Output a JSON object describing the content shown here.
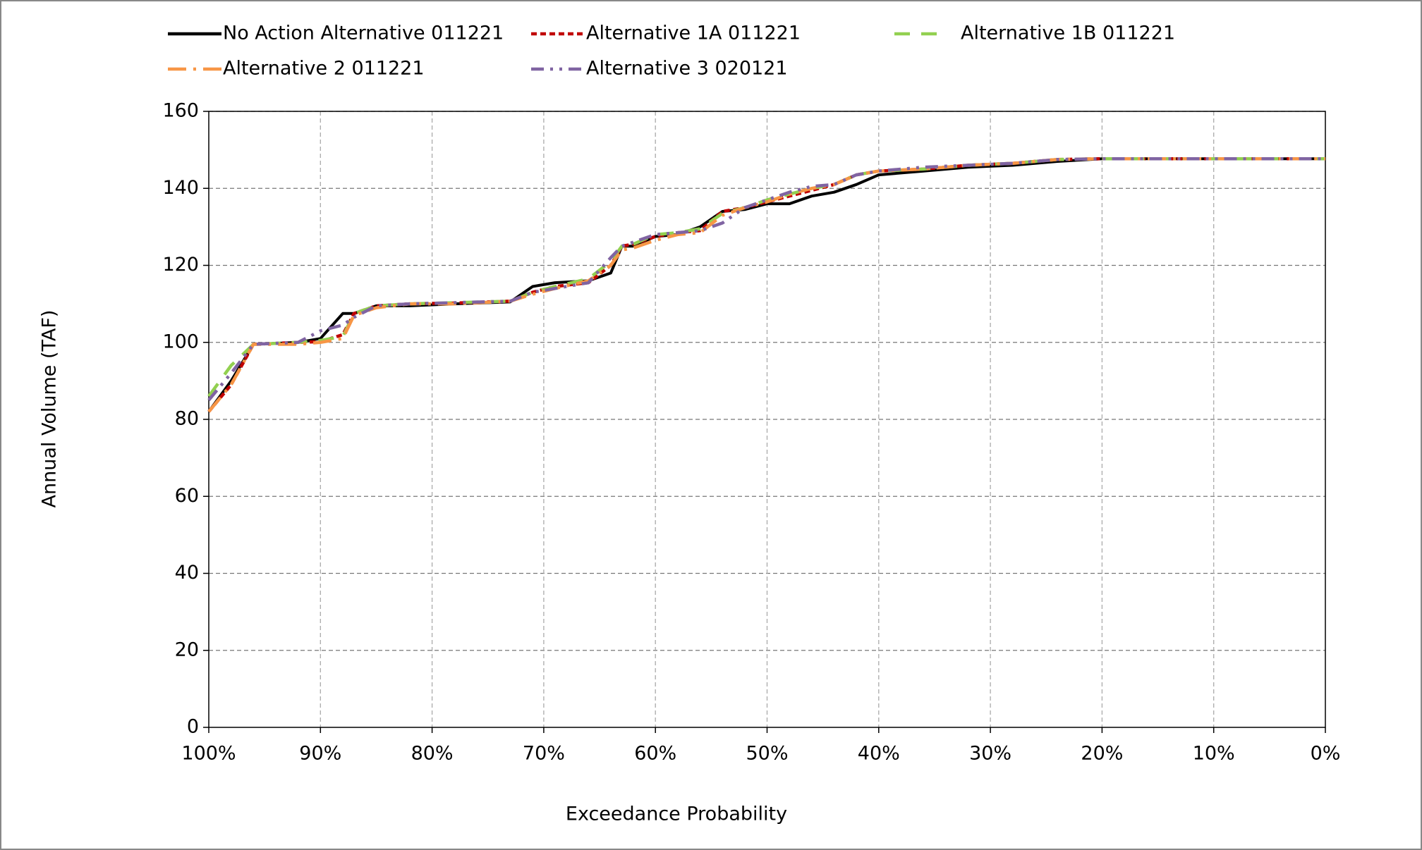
{
  "chart_data": {
    "type": "line",
    "x_label": "Exceedance Probability",
    "y_label": "Annual Volume (TAF)",
    "xlim": [
      100,
      0
    ],
    "ylim": [
      0,
      160
    ],
    "xticks": [
      {
        "value": 100,
        "label": "100%"
      },
      {
        "value": 90,
        "label": "90%"
      },
      {
        "value": 80,
        "label": "80%"
      },
      {
        "value": 70,
        "label": "70%"
      },
      {
        "value": 60,
        "label": "60%"
      },
      {
        "value": 50,
        "label": "50%"
      },
      {
        "value": 40,
        "label": "40%"
      },
      {
        "value": 30,
        "label": "30%"
      },
      {
        "value": 20,
        "label": "20%"
      },
      {
        "value": 10,
        "label": "10%"
      },
      {
        "value": 0,
        "label": "0%"
      }
    ],
    "yticks": [
      0,
      20,
      40,
      60,
      80,
      100,
      120,
      140,
      160
    ],
    "grid": true,
    "legend": "top",
    "x": [
      100,
      98,
      96,
      92,
      90,
      88,
      87,
      85,
      82,
      78,
      73,
      71,
      69,
      66,
      64,
      63,
      62,
      60,
      58,
      56,
      54,
      52,
      50,
      48,
      46,
      44,
      42,
      40,
      36,
      32,
      28,
      24,
      20,
      10,
      0
    ],
    "series": [
      {
        "name": "No Action Alternative 011221",
        "color": "#000000",
        "dash": "solid",
        "values": [
          82,
          90,
          99.5,
          100,
          101,
          107.5,
          107.5,
          109.5,
          109.5,
          110,
          110.5,
          114.5,
          115.5,
          116,
          118,
          125,
          125,
          127.5,
          128,
          130,
          134,
          134.5,
          136,
          136,
          138,
          139,
          141,
          143.5,
          144.5,
          145.5,
          146,
          147,
          147.7,
          147.7,
          147.7
        ]
      },
      {
        "name": "Alternative 1A 011221",
        "color": "#c00000",
        "dash": "short",
        "values": [
          82,
          89,
          99.5,
          100,
          100.2,
          102,
          107.5,
          109.5,
          110,
          110.2,
          110.7,
          113,
          114.5,
          115.5,
          120,
          125,
          125.5,
          127.5,
          128.5,
          129,
          134,
          135,
          136.5,
          138,
          139.5,
          141,
          143.5,
          144.5,
          145,
          146,
          146.5,
          147.5,
          147.7,
          147.7,
          147.7
        ]
      },
      {
        "name": "Alternative 1B 011221",
        "color": "#92d050",
        "dash": "long",
        "values": [
          86,
          94,
          99.5,
          100,
          100.5,
          101.5,
          107.5,
          109.5,
          110,
          110.3,
          110.7,
          113,
          114.5,
          116.5,
          121,
          125,
          125.5,
          128,
          128.5,
          129.5,
          133.5,
          135,
          137,
          138.5,
          140,
          141,
          143.5,
          144.5,
          145,
          146,
          146.5,
          147.5,
          147.7,
          147.7,
          147.7
        ]
      },
      {
        "name": "Alternative 2 011221",
        "color": "#f79646",
        "dash": "longdot",
        "values": [
          82,
          89,
          99.5,
          99.5,
          100,
          101,
          107,
          109,
          110,
          110,
          110.7,
          112.5,
          114,
          116,
          120,
          124,
          124.5,
          126.5,
          128,
          128.5,
          133,
          135,
          136.5,
          138.5,
          140,
          141,
          143.5,
          144.5,
          145,
          146,
          146.5,
          147.5,
          147.7,
          147.7,
          147.7
        ]
      },
      {
        "name": "Alternative 3 020121",
        "color": "#8064a2",
        "dash": "dashdotdot",
        "values": [
          85,
          92,
          99.5,
          100,
          103,
          104.5,
          106.5,
          109.5,
          110,
          110.3,
          110.7,
          113,
          114,
          115.5,
          122,
          125,
          126,
          128,
          128.5,
          129,
          131,
          135,
          137,
          139,
          140.5,
          141,
          143.5,
          144.5,
          145.5,
          146,
          146.5,
          147.5,
          147.7,
          147.7,
          147.7
        ]
      }
    ]
  }
}
